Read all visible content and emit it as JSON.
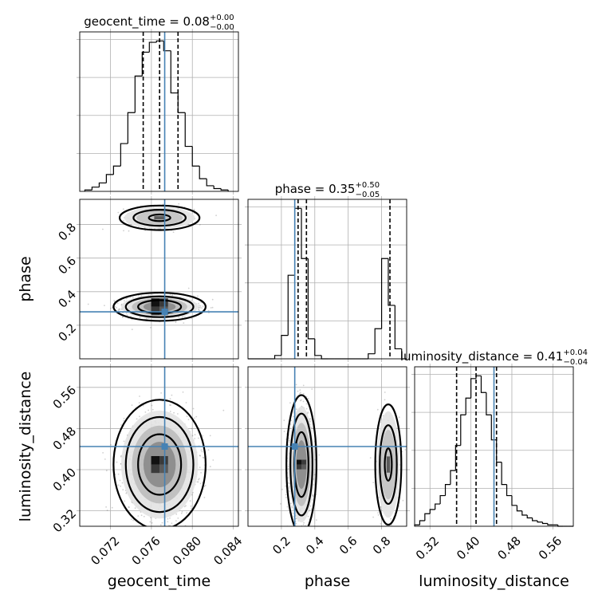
{
  "colors": {
    "truth": "#4682b4",
    "hist": "#000000",
    "grid": "#b0b0b0"
  },
  "chart_data": {
    "type": "corner",
    "parameters": [
      {
        "name": "geocent_time",
        "label": "geocent_time",
        "range": [
          0.069,
          0.0845
        ],
        "ticks": [
          0.072,
          0.076,
          0.08,
          0.084
        ],
        "tick_labels": [
          "0.072",
          "0.076",
          "0.080",
          "0.084"
        ],
        "truth": 0.0773,
        "title": {
          "param": "geocent_time",
          "value": "0.08",
          "plus": "+0.00",
          "minus": "−0.00"
        },
        "quantiles": [
          0.0752,
          0.0768,
          0.0786
        ],
        "histogram": {
          "bins": [
            0.0695,
            0.0702,
            0.0709,
            0.0716,
            0.0723,
            0.073,
            0.0737,
            0.0744,
            0.0751,
            0.0758,
            0.0765,
            0.0772,
            0.0779,
            0.0786,
            0.0793,
            0.08,
            0.0807,
            0.0814,
            0.0821,
            0.0828,
            0.0835
          ],
          "counts": [
            1,
            3,
            6,
            12,
            18,
            34,
            56,
            82,
            99,
            106,
            107,
            100,
            70,
            56,
            32,
            18,
            9,
            4,
            2,
            1
          ]
        }
      },
      {
        "name": "phase",
        "label": "phase",
        "range": [
          0.0,
          0.95
        ],
        "ticks": [
          0.2,
          0.4,
          0.6,
          0.8
        ],
        "tick_labels": [
          "0.2",
          "0.4",
          "0.6",
          "0.8"
        ],
        "truth": 0.28,
        "title": {
          "param": "phase",
          "value": "0.35",
          "plus": "+0.50",
          "minus": "−0.05"
        },
        "quantiles": [
          0.3,
          0.35,
          0.85
        ],
        "histogram": {
          "bins": [
            0.0,
            0.04,
            0.08,
            0.12,
            0.16,
            0.2,
            0.24,
            0.28,
            0.32,
            0.36,
            0.4,
            0.44,
            0.48,
            0.52,
            0.56,
            0.6,
            0.64,
            0.68,
            0.72,
            0.76,
            0.8,
            0.84,
            0.88,
            0.92,
            0.95
          ],
          "counts": [
            0,
            0,
            0,
            0,
            2,
            14,
            50,
            90,
            60,
            12,
            2,
            0,
            0,
            0,
            0,
            0,
            0,
            0,
            3,
            18,
            60,
            32,
            6,
            0
          ]
        }
      },
      {
        "name": "luminosity_distance",
        "label": "luminosity_distance",
        "range": [
          0.29,
          0.6
        ],
        "ticks": [
          0.32,
          0.4,
          0.48,
          0.56
        ],
        "tick_labels": [
          "0.32",
          "0.40",
          "0.48",
          "0.56"
        ],
        "truth": 0.445,
        "title": {
          "param": "luminosity_distance",
          "value": "0.41",
          "plus": "+0.04",
          "minus": "−0.04"
        },
        "quantiles": [
          0.372,
          0.41,
          0.45
        ],
        "histogram": {
          "bins": [
            0.29,
            0.3,
            0.31,
            0.32,
            0.33,
            0.34,
            0.35,
            0.36,
            0.37,
            0.38,
            0.39,
            0.4,
            0.41,
            0.42,
            0.43,
            0.44,
            0.45,
            0.46,
            0.47,
            0.48,
            0.49,
            0.5,
            0.51,
            0.52,
            0.53,
            0.54,
            0.55,
            0.56,
            0.57,
            0.58,
            0.59,
            0.6
          ],
          "counts": [
            1,
            4,
            9,
            12,
            16,
            22,
            30,
            40,
            58,
            80,
            92,
            106,
            108,
            96,
            80,
            62,
            46,
            30,
            22,
            15,
            11,
            8,
            6,
            4,
            3,
            2,
            1,
            1,
            0,
            0,
            0
          ]
        }
      }
    ],
    "pairs": [
      {
        "x": "geocent_time",
        "y": "phase",
        "modes": [
          {
            "cx": 0.0768,
            "cy": 0.31,
            "sx": 0.0015,
            "sy": 0.028,
            "weight": 0.8
          },
          {
            "cx": 0.0768,
            "cy": 0.84,
            "sx": 0.0015,
            "sy": 0.028,
            "weight": 0.2
          }
        ]
      },
      {
        "x": "geocent_time",
        "y": "luminosity_distance",
        "modes": [
          {
            "cx": 0.0768,
            "cy": 0.41,
            "sx": 0.0015,
            "sy": 0.042,
            "weight": 1.0
          }
        ]
      },
      {
        "x": "phase",
        "y": "luminosity_distance",
        "modes": [
          {
            "cx": 0.32,
            "cy": 0.41,
            "sx": 0.03,
            "sy": 0.045,
            "weight": 0.78
          },
          {
            "cx": 0.84,
            "cy": 0.41,
            "sx": 0.03,
            "sy": 0.045,
            "weight": 0.22
          }
        ]
      }
    ]
  }
}
